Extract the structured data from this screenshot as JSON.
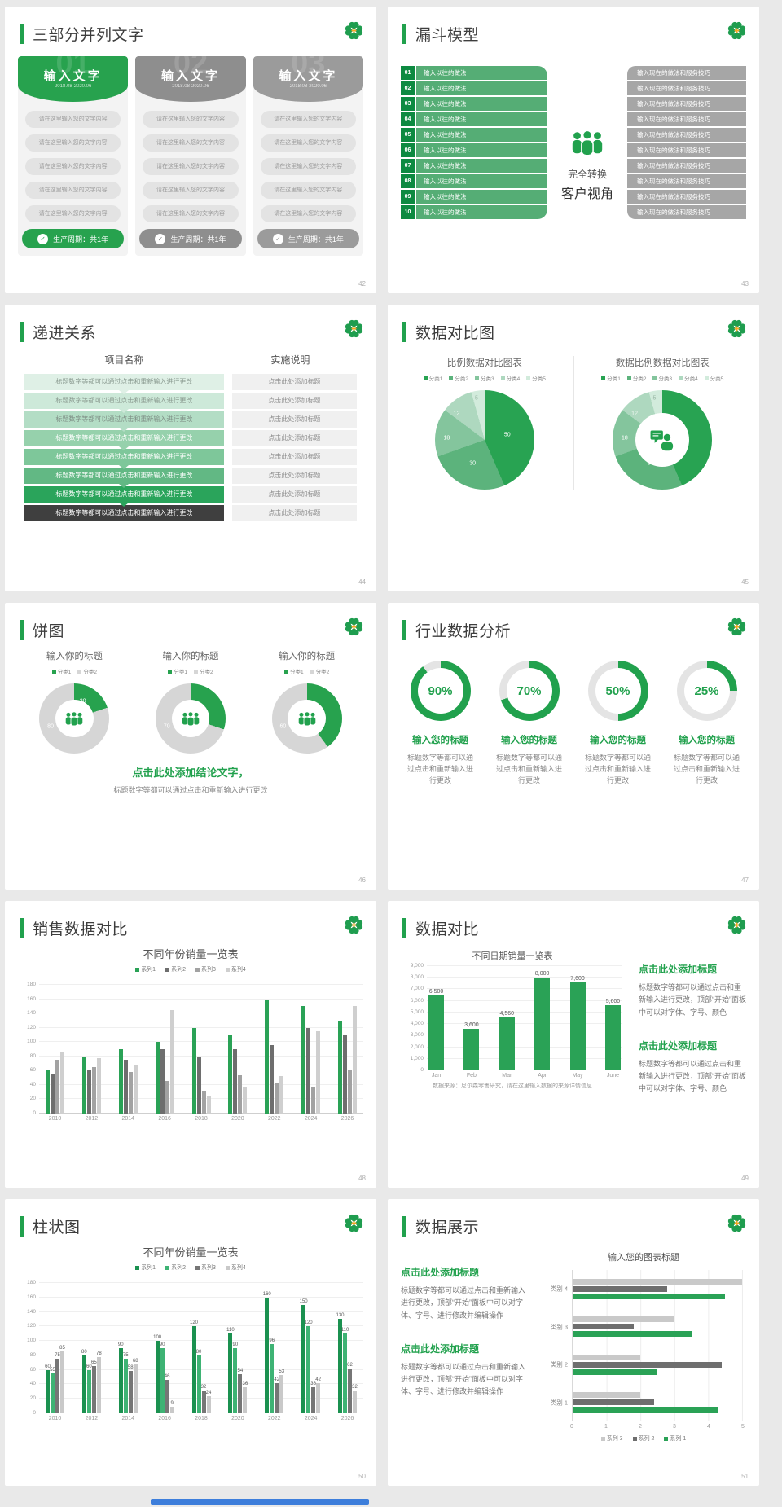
{
  "theme": {
    "green": "#21a14d",
    "dark_green": "#0d8a41",
    "orange": "#f5a623",
    "scrollbar_blue": "#3d7edb"
  },
  "slides": {
    "s42": {
      "title": "三部分并列文字",
      "page": "42",
      "header_label": "输入文字",
      "header_date": "2018.08-2020.06",
      "watermarks": [
        "01",
        "02",
        "03"
      ],
      "column_colors": [
        "#27a24e",
        "#8e8e8e",
        "#9b9b9b"
      ],
      "item": "请在这里输入您的文字内容",
      "items_per_column": 5,
      "footer": "生产周期：共1年"
    },
    "s43": {
      "title": "漏斗模型",
      "page": "43",
      "numbers": [
        "01",
        "02",
        "03",
        "04",
        "05",
        "06",
        "07",
        "08",
        "09",
        "10"
      ],
      "left_text": "输入以往的做法",
      "right_text": "输入现在的做法和服务技巧",
      "center_line1": "完全转换",
      "center_line2": "客户视角"
    },
    "s44": {
      "title": "递进关系",
      "page": "44",
      "col1_header": "项目名称",
      "col2_header": "实施说明",
      "row_left": "标题数字等都可以通过点击和重新输入进行更改",
      "row_right": "点击此处添加标题",
      "row_colors": [
        "#dff0e6",
        "#cde9d9",
        "#b3ddc5",
        "#96d1ac",
        "#7ec79a",
        "#62b884",
        "#2aa45b",
        "#3f3f3f"
      ],
      "row_text_colors": [
        "#8a9a90",
        "#8a9a90",
        "#7f8f86",
        "#ffffff",
        "#ffffff",
        "#ffffff",
        "#ffffff",
        "#ffffff"
      ]
    },
    "s45": {
      "title": "数据对比图",
      "page": "45",
      "left_chart": {
        "type": "pie",
        "title": "比例数据对比图表",
        "categories": [
          "分类1",
          "分类2",
          "分类3",
          "分类4",
          "分类5"
        ],
        "values": [
          50,
          30,
          18,
          12,
          5
        ]
      },
      "right_chart": {
        "type": "donut",
        "title": "数据比例数据对比图表",
        "categories": [
          "分类1",
          "分类2",
          "分类3",
          "分类4",
          "分类5"
        ],
        "values": [
          50,
          30,
          18,
          12,
          5
        ]
      },
      "colors": [
        "#28a352",
        "#5cb37c",
        "#84c59d",
        "#aed8bf",
        "#d2ebdc"
      ]
    },
    "s46": {
      "title": "饼图",
      "page": "46",
      "chart_title": "输入你的标题",
      "legend": [
        "分类1",
        "分类2"
      ],
      "donuts": [
        {
          "green": 20,
          "gray": 80
        },
        {
          "green": 30,
          "gray": 70
        },
        {
          "green": 40,
          "gray": 60
        }
      ],
      "green_color": "#27a24e",
      "gray_color": "#d6d6d6",
      "conclusion_title": "点击此处添加结论文字，",
      "conclusion_body": "标题数字等都可以通过点击和重新输入进行更改"
    },
    "s47": {
      "title": "行业数据分析",
      "page": "47",
      "rings": [
        90,
        70,
        50,
        25
      ],
      "percents": [
        "90%",
        "70%",
        "50%",
        "25%"
      ],
      "item_title": "输入您的标题",
      "item_body": "标题数字等都可以通过点击和重新输入进行更改"
    },
    "s48": {
      "title": "销售数据对比",
      "page": "48",
      "chart_title": "不同年份销量一览表",
      "legend": [
        "系列1",
        "系列2",
        "系列3",
        "系列4"
      ],
      "series_colors": [
        "#2aa256",
        "#6e6e6e",
        "#a2a2a2",
        "#cfcfcf"
      ],
      "years": [
        "2010",
        "2012",
        "2014",
        "2016",
        "2018",
        "2020",
        "2022",
        "2024",
        "2026"
      ],
      "ymax": 180,
      "yticks": [
        180,
        160,
        140,
        120,
        100,
        80,
        60,
        40,
        20,
        0
      ],
      "series": [
        [
          60,
          80,
          90,
          100,
          120,
          110,
          160,
          150,
          130
        ],
        [
          55,
          60,
          75,
          90,
          80,
          90,
          96,
          120,
          110
        ],
        [
          75,
          65,
          58,
          46,
          32,
          54,
          42,
          36,
          62
        ],
        [
          85,
          78,
          68,
          145,
          24,
          36,
          53,
          115,
          150
        ]
      ],
      "show_labels": false
    },
    "s49": {
      "title": "数据对比",
      "page": "49",
      "chart_title": "不同日期销量一览表",
      "months": [
        "Jan",
        "Feb",
        "Mar",
        "Apr",
        "May",
        "June"
      ],
      "values": [
        6500,
        3600,
        4560,
        8000,
        7600,
        5600
      ],
      "labels": [
        "6,500",
        "3,600",
        "4,560",
        "8,000",
        "7,600",
        "5,600"
      ],
      "yticks": [
        "9,000",
        "8,000",
        "7,000",
        "6,000",
        "5,000",
        "4,000",
        "3,000",
        "2,000",
        "1,000",
        "0"
      ],
      "ymax": 9000,
      "bar_color": "#2aa256",
      "caption": "数据来源：尼尔森零售研究，请在这里输入数据的来源详情信息",
      "block_title": "点击此处添加标题",
      "block_body": "标题数字等都可以通过点击和重新输入进行更改，顶部“开始”面板中可以对字体、字号、颜色"
    },
    "s50": {
      "title": "柱状图",
      "page": "50",
      "chart_title": "不同年份销量一览表",
      "legend": [
        "系列1",
        "系列2",
        "系列3",
        "系列4"
      ],
      "series_colors": [
        "#1b9150",
        "#3eb374",
        "#767676",
        "#c9c9c9"
      ],
      "years": [
        "2010",
        "2012",
        "2014",
        "2016",
        "2018",
        "2020",
        "2022",
        "2024",
        "2026"
      ],
      "ymax": 180,
      "yticks": [
        180,
        160,
        140,
        120,
        100,
        80,
        60,
        40,
        20,
        0
      ],
      "series": [
        [
          60,
          80,
          90,
          100,
          120,
          110,
          160,
          150,
          130
        ],
        [
          55,
          60,
          75,
          90,
          80,
          90,
          96,
          120,
          110
        ],
        [
          75,
          65,
          58,
          46,
          32,
          54,
          42,
          36,
          62
        ],
        [
          85,
          78,
          68,
          9,
          24,
          36,
          53,
          42,
          32
        ]
      ],
      "show_labels": true
    },
    "s51": {
      "title": "数据展示",
      "page": "51",
      "chart_title": "输入您的图表标题",
      "categories": [
        "类别 4",
        "类别 3",
        "类别 2",
        "类别 1"
      ],
      "xticks": [
        "0",
        "1",
        "2",
        "3",
        "4",
        "5"
      ],
      "xmax": 5,
      "series": {
        "s1_green": [
          4.5,
          3.5,
          2.5,
          4.3
        ],
        "s2_dark": [
          2.8,
          1.8,
          4.4,
          2.4
        ],
        "s3_light": [
          5.0,
          3.0,
          2.0,
          2.0
        ]
      },
      "bar_colors": {
        "s1_green": "#2aa256",
        "s2_dark": "#6e6e6e",
        "s3_light": "#c9c9c9"
      },
      "legend": [
        {
          "label": "系列 3",
          "color": "#c9c9c9"
        },
        {
          "label": "系列 2",
          "color": "#6e6e6e"
        },
        {
          "label": "系列 1",
          "color": "#2aa256"
        }
      ],
      "block_title": "点击此处添加标题",
      "block_body": "标题数字等都可以通过点击和重新输入进行更改，顶部“开始”面板中可以对字体、字号、进行修改并编辑操作"
    }
  }
}
